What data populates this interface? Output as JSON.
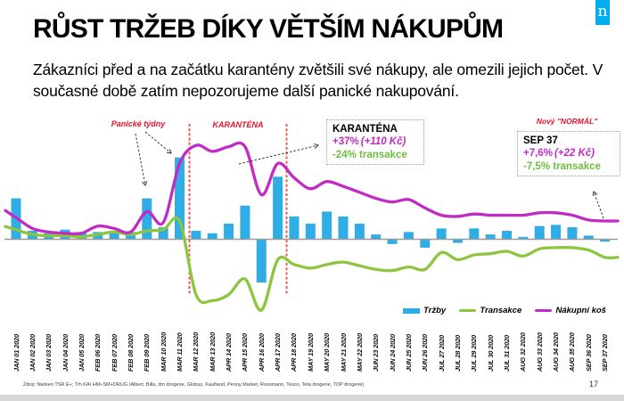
{
  "header": {
    "title": "RŮST TRŽEB DÍKY VĚTŠÍM NÁKUPŮM",
    "subtitle": "Zákazníci před a na začátku karantény zvětšili své nákupy, ale omezili jejich počet. V současné době zatím nepozorujeme další panické nakupování.",
    "logo_letter": "n"
  },
  "annotations": {
    "panic_weeks_label": "Panické týdny",
    "quarantine_label": "KARANTÉNA",
    "new_normal_label": "Nový \"NORMÁL\"",
    "quarantine_box": {
      "title": "KARANTÉNA",
      "basket_pct": "+37%",
      "basket_kc": "(+110 Kč)",
      "transactions": "-24% transakce"
    },
    "new_normal_box": {
      "title": "SEP 37",
      "basket_pct": "+7,6%",
      "basket_kc": "(+22 Kč)",
      "transactions": "-7,5% transakce"
    }
  },
  "legend": [
    {
      "label": "Tržby",
      "type": "bar",
      "color": "#2FADE4"
    },
    {
      "label": "Transakce",
      "type": "line",
      "color": "#8CC63F"
    },
    {
      "label": "Nákupní koš",
      "type": "line",
      "color": "#C12BC4"
    }
  ],
  "footer": {
    "source": "Zdroj: Nielsen TSR E+; Trh KAI HM+SM+DRUG (Albert, Billa, dm drogerie, Globus, Kaufland, Penny Market, Rossmann, Tesco, Teta drogerie, TOP drogerie)",
    "page_number": "17"
  },
  "colors": {
    "bars": "#2FADE4",
    "transactions_line": "#8CC63F",
    "basket_line": "#C12BC4",
    "quarantine_dash": "#F0564A",
    "red_note": "#E8112D",
    "baseline": "#9B9B9B",
    "logo_blue": "#00AEEF"
  },
  "chart_data": {
    "type": "bar",
    "subtype": "combo-bar-line",
    "unit": "% change (estimated from chart pixels)",
    "grid": false,
    "zero_line": true,
    "legend_position": "bottom-right",
    "ylim": [
      -32,
      42
    ],
    "quarantine_span": {
      "from": "MAR 11 2020",
      "to": "APR 17 2020"
    },
    "categories": [
      "JAN 01 2020",
      "JAN 02 2020",
      "JAN 03 2020",
      "JAN 04 2020",
      "JAN 05 2020",
      "FEB 06 2020",
      "FEB 07 2020",
      "FEB 08 2020",
      "FEB 09 2020",
      "MAR 10 2020",
      "MAR 11 2020",
      "MAR 12 2020",
      "MAR 13 2020",
      "APR 14 2020",
      "APR 15 2020",
      "APR 16 2020",
      "APR 17 2020",
      "APR 18 2020",
      "MAY 19 2020",
      "MAY 20 2020",
      "MAY 21 2020",
      "MAY 22 2020",
      "JUN 23 2020",
      "JUN 24 2020",
      "JUN 25 2020",
      "JUN 26 2020",
      "JUL 27 2020",
      "JUL 28 2020",
      "JUL 29 2020",
      "JUL 30 2020",
      "JUL 31 2020",
      "AUG 32 2020",
      "AUG 33 2020",
      "AUG 34 2020",
      "AUG 35 2020",
      "SEP 36 2020",
      "SEP 37 2020"
    ],
    "series": [
      {
        "name": "Tržby",
        "type": "bar",
        "color": "#2FADE4",
        "values": [
          17,
          3.5,
          2.5,
          4,
          3,
          3,
          3.5,
          3,
          17,
          5,
          34,
          3.5,
          2.5,
          6.5,
          14,
          -18,
          26,
          9.5,
          6.5,
          11.5,
          9.5,
          6.5,
          2,
          -2,
          3,
          -3.5,
          4.5,
          -1.5,
          4.5,
          2,
          3.5,
          1,
          5.5,
          6,
          5,
          1.5,
          -1
        ]
      },
      {
        "name": "Transakce",
        "type": "line",
        "color": "#8CC63F",
        "values": [
          4,
          2,
          1.5,
          1.5,
          1,
          2,
          3,
          2,
          3.5,
          4,
          7.5,
          -23,
          -25.5,
          -23,
          -16.5,
          -29.5,
          -8.5,
          -10.5,
          -12,
          -10.5,
          -9.5,
          -11,
          -12.5,
          -13,
          -11.5,
          -12.5,
          -5.5,
          -8.5,
          -6.5,
          -6,
          -5,
          -7,
          -4,
          -3.5,
          -3.5,
          -4.5,
          -7.5
        ]
      },
      {
        "name": "Nákupní koš",
        "type": "line",
        "color": "#C12BC4",
        "values": [
          9,
          4.5,
          3,
          2.5,
          2.5,
          5.5,
          4.5,
          3,
          11.5,
          7,
          31.5,
          39,
          36.5,
          38.5,
          38.5,
          18.5,
          31.5,
          25.5,
          21,
          24,
          22,
          19.5,
          17,
          15.5,
          16.5,
          13,
          10,
          9.5,
          10.5,
          10,
          10,
          10,
          11,
          11,
          10,
          8,
          7.6
        ]
      }
    ]
  }
}
